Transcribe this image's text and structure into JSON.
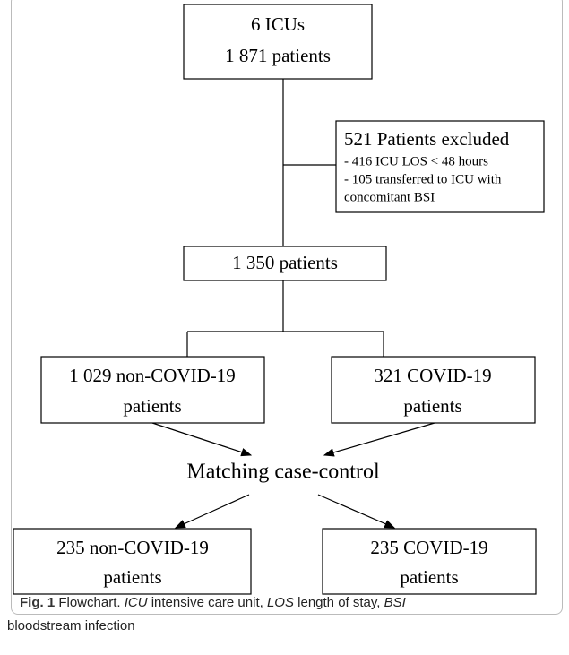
{
  "nodes": [
    {
      "lines": [
        "6 ICUs",
        "1 871 patients"
      ]
    },
    {
      "title": "521 Patients excluded",
      "lines": [
        "- 416 ICU LOS < 48 hours",
        "- 105 transferred to ICU with",
        "concomitant BSI"
      ]
    },
    {
      "lines": [
        "1 350 patients"
      ]
    },
    {
      "lines": [
        "1 029 non-COVID-19",
        "patients"
      ]
    },
    {
      "lines": [
        "321 COVID-19",
        "patients"
      ]
    },
    {
      "lines": [
        "Matching case-control"
      ]
    },
    {
      "lines": [
        "235 non-COVID-19",
        "patients"
      ]
    },
    {
      "lines": [
        "235 COVID-19",
        "patients"
      ]
    }
  ],
  "caption": {
    "label": "Fig. 1",
    "text": "Flowchart.",
    "terms": [
      {
        "abbr": "ICU",
        "definition": "intensive care unit,"
      },
      {
        "abbr": "LOS",
        "definition": "length of stay,"
      },
      {
        "abbr": "BSI",
        "definition": "bloodstream infection"
      }
    ]
  }
}
